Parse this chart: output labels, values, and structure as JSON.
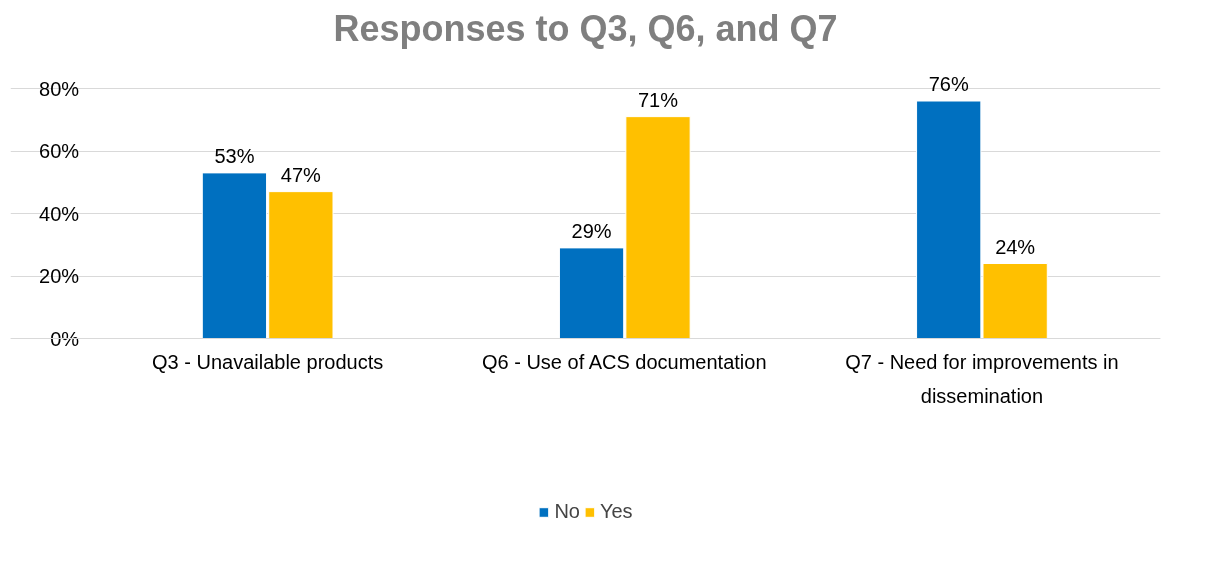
{
  "chart_data": {
    "type": "bar",
    "title": "Responses to Q3, Q6, and Q7",
    "categories": [
      "Q3 - Unavailable products",
      "Q6 - Use of ACS documentation",
      "Q7 - Need for improvements in dissemination"
    ],
    "series": [
      {
        "name": "No",
        "color": "#0070c0",
        "values": [
          53,
          29,
          76
        ],
        "value_labels": [
          "53%",
          "29%",
          "76%"
        ]
      },
      {
        "name": "Yes",
        "color": "#ffc000",
        "values": [
          47,
          71,
          24
        ],
        "value_labels": [
          "47%",
          "71%",
          "24%"
        ]
      }
    ],
    "ylim": [
      0,
      80
    ],
    "yticks": [
      {
        "value": 0,
        "label": "0%"
      },
      {
        "value": 20,
        "label": "20%"
      },
      {
        "value": 40,
        "label": "40%"
      },
      {
        "value": 60,
        "label": "60%"
      },
      {
        "value": 80,
        "label": "80%"
      }
    ],
    "grid": "y",
    "legend": "bottom"
  }
}
